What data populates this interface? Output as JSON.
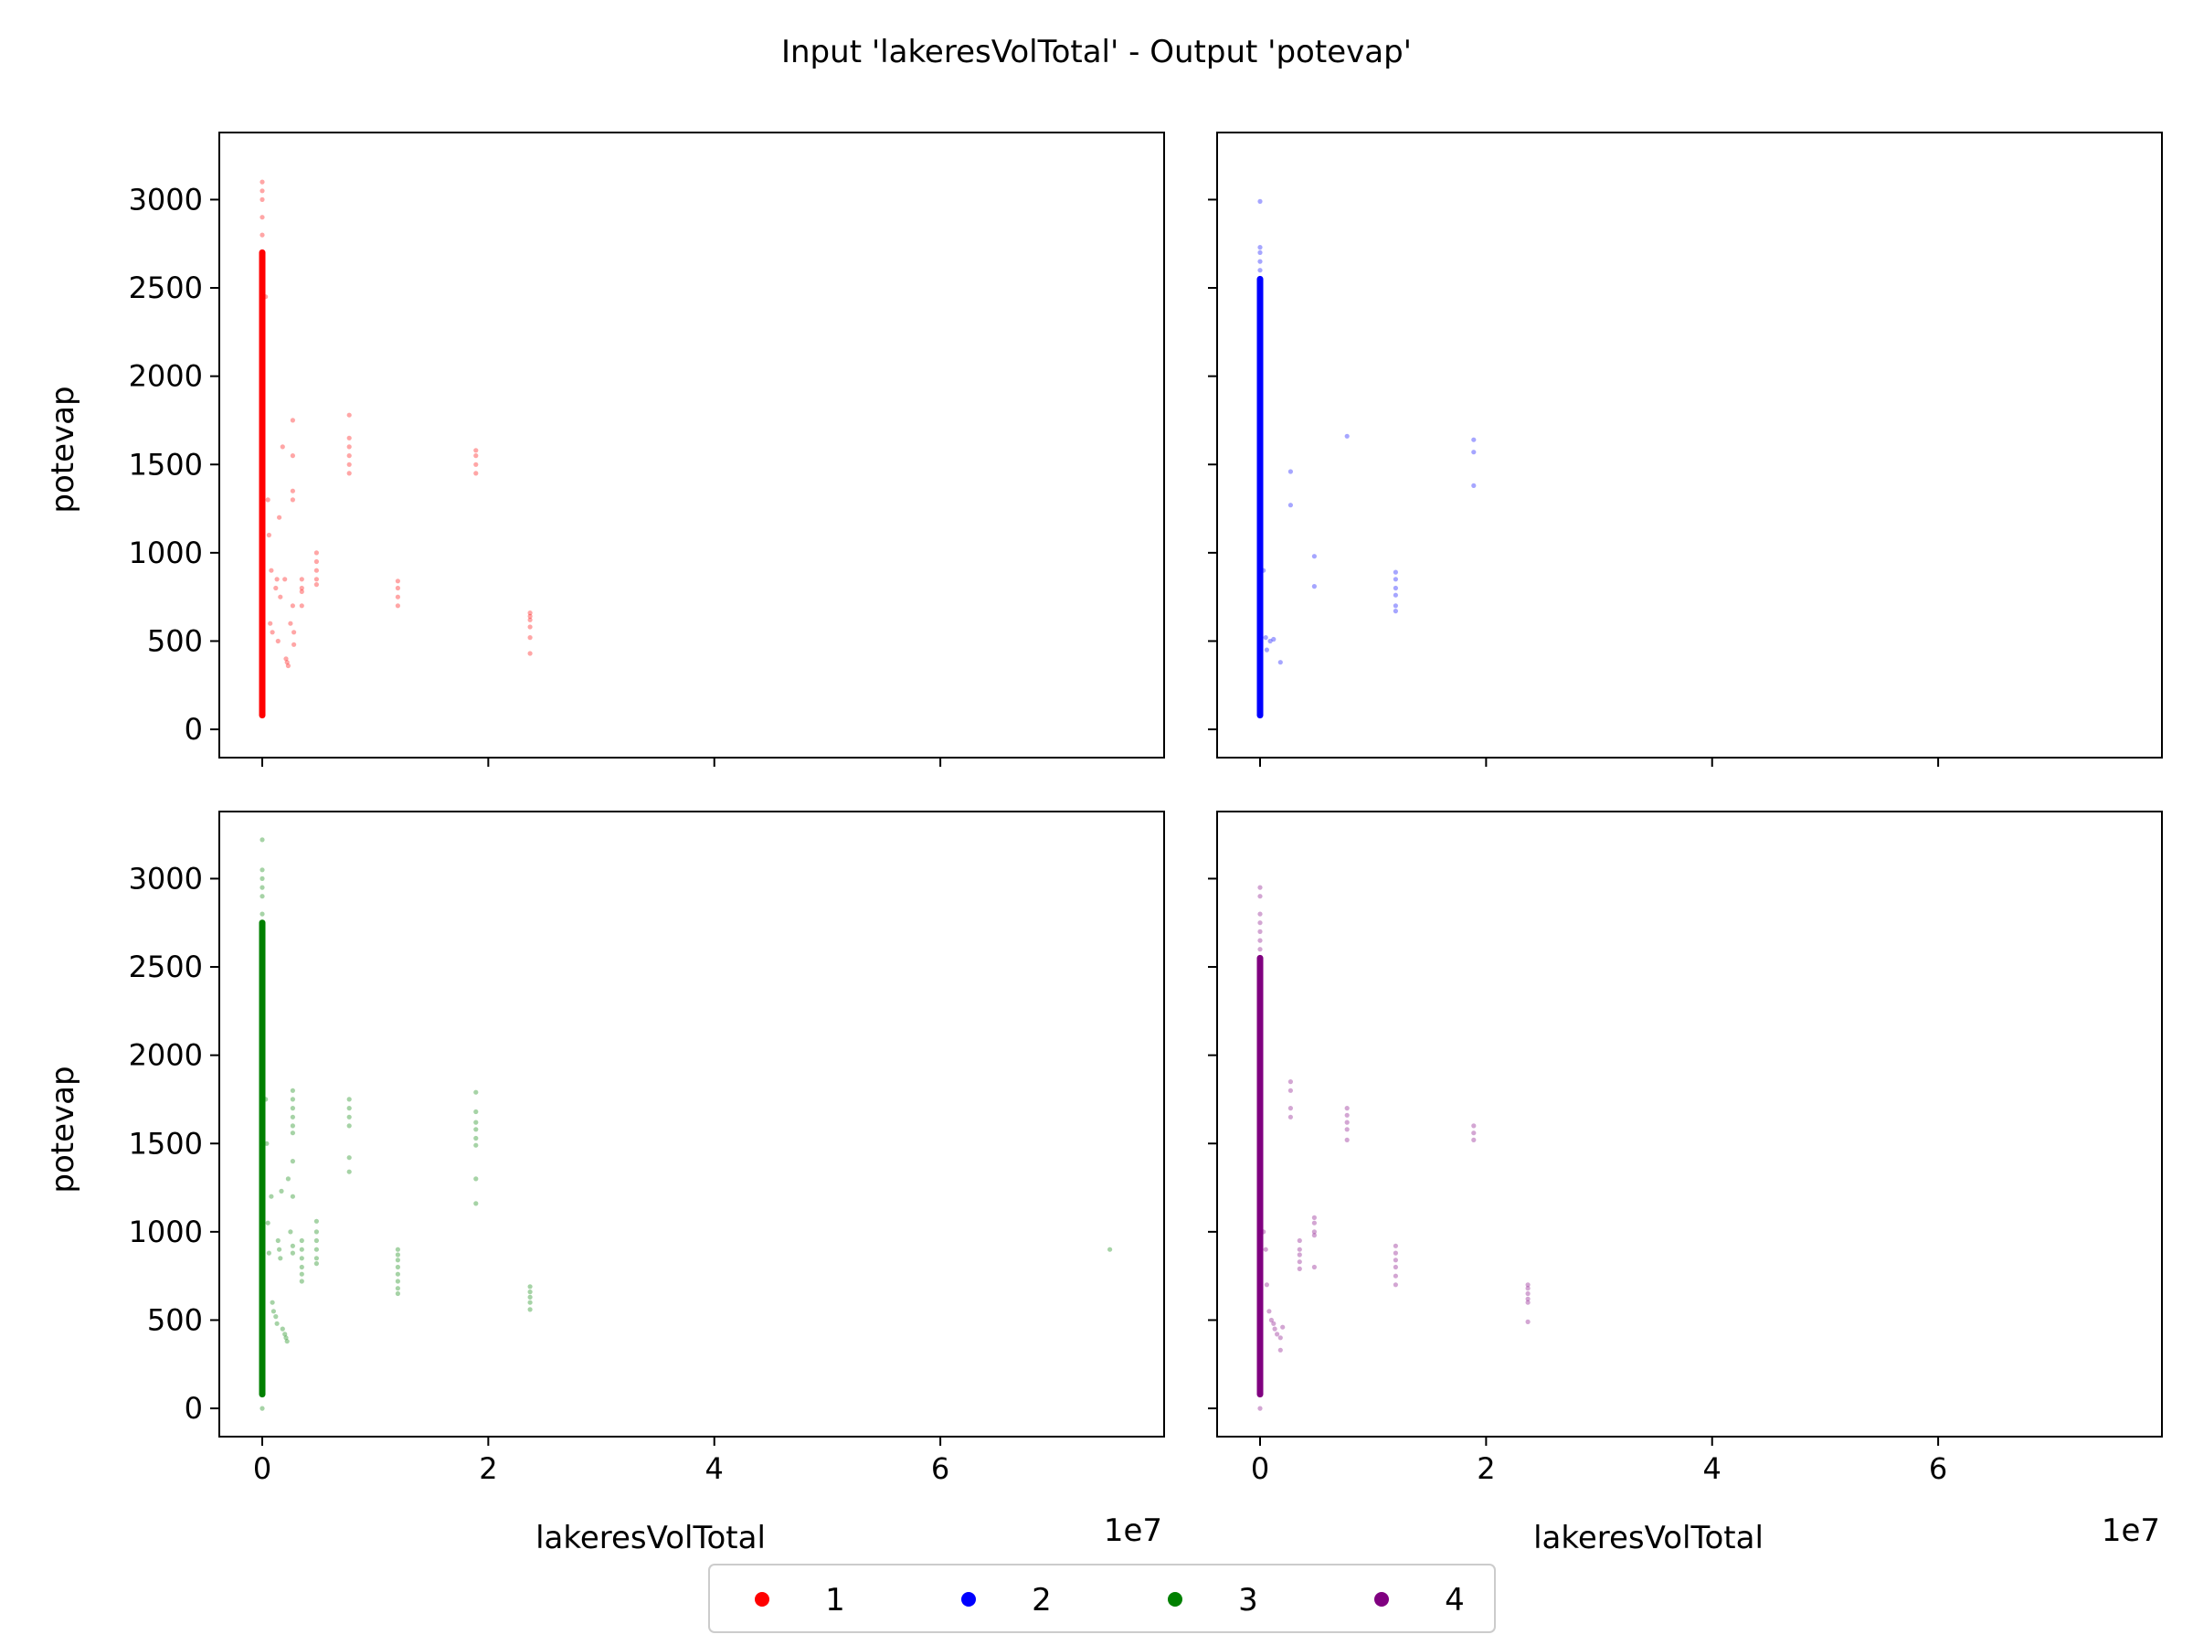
{
  "figure": {
    "title": "Input 'lakeresVolTotal' - Output 'potevap'"
  },
  "axes_common": {
    "xlabel": "lakeresVolTotal",
    "ylabel": "potevap",
    "x_offset_text": "1e7",
    "xlim": [
      -3800000,
      79800000
    ],
    "ylim": [
      -160,
      3380
    ],
    "x_scale": 10000000,
    "x_ticks": [
      0,
      20000000,
      40000000,
      60000000
    ],
    "x_tick_labels": [
      "0",
      "2",
      "4",
      "6"
    ],
    "y_ticks": [
      0,
      500,
      1000,
      1500,
      2000,
      2500,
      3000
    ],
    "y_tick_labels": [
      "0",
      "500",
      "1000",
      "1500",
      "2000",
      "2500",
      "3000"
    ]
  },
  "legend": {
    "placement": "bottom-center",
    "entries": [
      {
        "label": "1",
        "color": "#ff0000"
      },
      {
        "label": "2",
        "color": "#0000ff"
      },
      {
        "label": "3",
        "color": "#008000"
      },
      {
        "label": "4",
        "color": "#800080"
      }
    ]
  },
  "chart_data": [
    {
      "type": "scatter",
      "series": [
        {
          "name": "1",
          "color": "#ff0000",
          "dense_band": {
            "x": 0,
            "y_range": [
              80,
              2700
            ]
          },
          "points": [
            [
              0,
              2800
            ],
            [
              0,
              2900
            ],
            [
              0,
              3000
            ],
            [
              0,
              3050
            ],
            [
              0,
              3100
            ],
            [
              300000,
              2450
            ],
            [
              500000,
              1300
            ],
            [
              600000,
              1100
            ],
            [
              800000,
              900
            ],
            [
              700000,
              600
            ],
            [
              900000,
              550
            ],
            [
              1200000,
              800
            ],
            [
              1300000,
              850
            ],
            [
              1400000,
              500
            ],
            [
              1500000,
              1200
            ],
            [
              1600000,
              750
            ],
            [
              1800000,
              1600
            ],
            [
              2000000,
              850
            ],
            [
              2100000,
              400
            ],
            [
              2200000,
              380
            ],
            [
              2300000,
              360
            ],
            [
              2500000,
              600
            ],
            [
              2700000,
              1750
            ],
            [
              2700000,
              1550
            ],
            [
              2700000,
              1350
            ],
            [
              2700000,
              1300
            ],
            [
              2700000,
              700
            ],
            [
              2800000,
              550
            ],
            [
              2800000,
              480
            ],
            [
              3500000,
              850
            ],
            [
              3500000,
              800
            ],
            [
              3500000,
              780
            ],
            [
              3500000,
              700
            ],
            [
              4800000,
              1000
            ],
            [
              4800000,
              950
            ],
            [
              4800000,
              900
            ],
            [
              4800000,
              850
            ],
            [
              4800000,
              820
            ],
            [
              7700000,
              1780
            ],
            [
              7700000,
              1650
            ],
            [
              7700000,
              1600
            ],
            [
              7700000,
              1550
            ],
            [
              7700000,
              1500
            ],
            [
              7700000,
              1450
            ],
            [
              12000000,
              840
            ],
            [
              12000000,
              800
            ],
            [
              12000000,
              750
            ],
            [
              12000000,
              700
            ],
            [
              18900000,
              1580
            ],
            [
              18900000,
              1550
            ],
            [
              18900000,
              1500
            ],
            [
              18900000,
              1450
            ],
            [
              23700000,
              660
            ],
            [
              23700000,
              640
            ],
            [
              23700000,
              620
            ],
            [
              23700000,
              580
            ],
            [
              23700000,
              520
            ],
            [
              23700000,
              430
            ]
          ]
        }
      ]
    },
    {
      "type": "scatter",
      "series": [
        {
          "name": "2",
          "color": "#0000ff",
          "dense_band": {
            "x": 0,
            "y_range": [
              80,
              2550
            ]
          },
          "points": [
            [
              0,
              2600
            ],
            [
              0,
              2650
            ],
            [
              0,
              2700
            ],
            [
              0,
              2730
            ],
            [
              0,
              2990
            ],
            [
              300000,
              900
            ],
            [
              500000,
              520
            ],
            [
              600000,
              450
            ],
            [
              900000,
              500
            ],
            [
              1200000,
              510
            ],
            [
              1800000,
              380
            ],
            [
              2700000,
              1460
            ],
            [
              2700000,
              1270
            ],
            [
              4800000,
              980
            ],
            [
              4800000,
              810
            ],
            [
              7700000,
              1660
            ],
            [
              12000000,
              890
            ],
            [
              12000000,
              850
            ],
            [
              12000000,
              800
            ],
            [
              12000000,
              760
            ],
            [
              12000000,
              700
            ],
            [
              12000000,
              670
            ],
            [
              18900000,
              1640
            ],
            [
              18900000,
              1570
            ],
            [
              18900000,
              1380
            ]
          ]
        }
      ]
    },
    {
      "type": "scatter",
      "series": [
        {
          "name": "3",
          "color": "#008000",
          "dense_band": {
            "x": 0,
            "y_range": [
              80,
              2750
            ]
          },
          "points": [
            [
              0,
              2800
            ],
            [
              0,
              2900
            ],
            [
              0,
              2950
            ],
            [
              0,
              3000
            ],
            [
              0,
              3050
            ],
            [
              0,
              3220
            ],
            [
              0,
              0
            ],
            [
              300000,
              1750
            ],
            [
              400000,
              1500
            ],
            [
              500000,
              1050
            ],
            [
              600000,
              880
            ],
            [
              800000,
              1200
            ],
            [
              900000,
              600
            ],
            [
              1000000,
              550
            ],
            [
              1200000,
              520
            ],
            [
              1300000,
              480
            ],
            [
              1400000,
              950
            ],
            [
              1500000,
              900
            ],
            [
              1600000,
              850
            ],
            [
              1700000,
              1230
            ],
            [
              1800000,
              450
            ],
            [
              2000000,
              420
            ],
            [
              2100000,
              400
            ],
            [
              2200000,
              380
            ],
            [
              2300000,
              1300
            ],
            [
              2500000,
              1000
            ],
            [
              2700000,
              1800
            ],
            [
              2700000,
              1750
            ],
            [
              2700000,
              1700
            ],
            [
              2700000,
              1650
            ],
            [
              2700000,
              1600
            ],
            [
              2700000,
              1560
            ],
            [
              2700000,
              1400
            ],
            [
              2700000,
              1200
            ],
            [
              2700000,
              920
            ],
            [
              2700000,
              880
            ],
            [
              3500000,
              950
            ],
            [
              3500000,
              900
            ],
            [
              3500000,
              850
            ],
            [
              3500000,
              800
            ],
            [
              3500000,
              760
            ],
            [
              3500000,
              720
            ],
            [
              4800000,
              1060
            ],
            [
              4800000,
              1000
            ],
            [
              4800000,
              950
            ],
            [
              4800000,
              900
            ],
            [
              4800000,
              850
            ],
            [
              4800000,
              820
            ],
            [
              7700000,
              1750
            ],
            [
              7700000,
              1700
            ],
            [
              7700000,
              1650
            ],
            [
              7700000,
              1600
            ],
            [
              7700000,
              1420
            ],
            [
              7700000,
              1340
            ],
            [
              12000000,
              900
            ],
            [
              12000000,
              870
            ],
            [
              12000000,
              840
            ],
            [
              12000000,
              800
            ],
            [
              12000000,
              760
            ],
            [
              12000000,
              720
            ],
            [
              12000000,
              680
            ],
            [
              12000000,
              650
            ],
            [
              18900000,
              1790
            ],
            [
              18900000,
              1680
            ],
            [
              18900000,
              1620
            ],
            [
              18900000,
              1580
            ],
            [
              18900000,
              1530
            ],
            [
              18900000,
              1490
            ],
            [
              18900000,
              1300
            ],
            [
              18900000,
              1160
            ],
            [
              23700000,
              690
            ],
            [
              23700000,
              660
            ],
            [
              23700000,
              630
            ],
            [
              23700000,
              600
            ],
            [
              23700000,
              560
            ],
            [
              75000000,
              900
            ]
          ]
        }
      ]
    },
    {
      "type": "scatter",
      "series": [
        {
          "name": "4",
          "color": "#800080",
          "dense_band": {
            "x": 0,
            "y_range": [
              80,
              2550
            ]
          },
          "points": [
            [
              0,
              2600
            ],
            [
              0,
              2650
            ],
            [
              0,
              2700
            ],
            [
              0,
              2750
            ],
            [
              0,
              2800
            ],
            [
              0,
              2900
            ],
            [
              0,
              2950
            ],
            [
              0,
              0
            ],
            [
              300000,
              1000
            ],
            [
              500000,
              900
            ],
            [
              600000,
              700
            ],
            [
              800000,
              550
            ],
            [
              1000000,
              500
            ],
            [
              1200000,
              480
            ],
            [
              1300000,
              450
            ],
            [
              1500000,
              420
            ],
            [
              1800000,
              400
            ],
            [
              1800000,
              330
            ],
            [
              2000000,
              460
            ],
            [
              2700000,
              1850
            ],
            [
              2700000,
              1800
            ],
            [
              2700000,
              1700
            ],
            [
              2700000,
              1650
            ],
            [
              3500000,
              950
            ],
            [
              3500000,
              900
            ],
            [
              3500000,
              870
            ],
            [
              3500000,
              830
            ],
            [
              3500000,
              790
            ],
            [
              4800000,
              1080
            ],
            [
              4800000,
              1050
            ],
            [
              4800000,
              1000
            ],
            [
              4800000,
              980
            ],
            [
              4800000,
              800
            ],
            [
              7700000,
              1700
            ],
            [
              7700000,
              1660
            ],
            [
              7700000,
              1620
            ],
            [
              7700000,
              1580
            ],
            [
              7700000,
              1520
            ],
            [
              12000000,
              920
            ],
            [
              12000000,
              880
            ],
            [
              12000000,
              840
            ],
            [
              12000000,
              800
            ],
            [
              12000000,
              750
            ],
            [
              12000000,
              700
            ],
            [
              18900000,
              1600
            ],
            [
              18900000,
              1560
            ],
            [
              18900000,
              1520
            ],
            [
              23700000,
              700
            ],
            [
              23700000,
              680
            ],
            [
              23700000,
              650
            ],
            [
              23700000,
              620
            ],
            [
              23700000,
              600
            ],
            [
              23700000,
              490
            ]
          ]
        }
      ]
    }
  ]
}
